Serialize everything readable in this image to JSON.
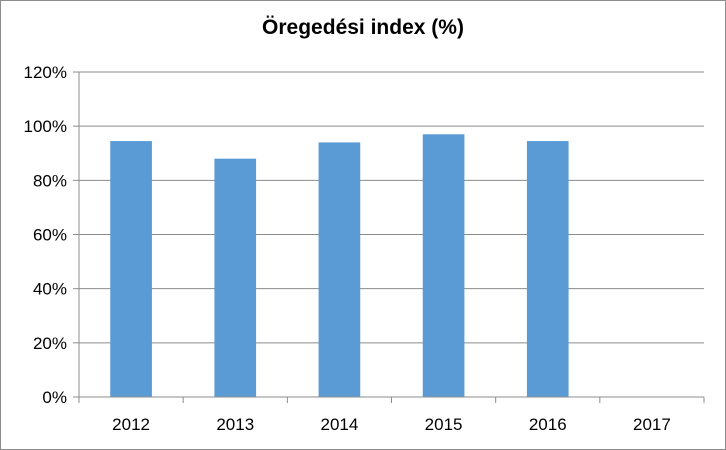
{
  "chart_data": {
    "type": "bar",
    "title": "Öregedési index (%)",
    "xlabel": "",
    "ylabel": "",
    "categories": [
      "2012",
      "2013",
      "2014",
      "2015",
      "2016",
      "2017"
    ],
    "values": [
      94.5,
      88,
      94,
      97,
      94.5,
      null
    ],
    "ylim": [
      0,
      120
    ],
    "yticks": [
      0,
      20,
      40,
      60,
      80,
      100,
      120
    ],
    "ytick_labels": [
      "0%",
      "20%",
      "40%",
      "60%",
      "80%",
      "100%",
      "120%"
    ],
    "grid": true,
    "legend": "none",
    "bar_color": "#5b9bd5",
    "grid_color": "#8c8c8c"
  }
}
